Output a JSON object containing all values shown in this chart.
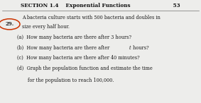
{
  "section_label": "SECTION 1.4",
  "section_title": "Exponential Functions",
  "page_number": "53",
  "bg_color": "#e8e8e8",
  "circle_color": "#cc3300",
  "text_color": "#1a1a1a",
  "header_color": "#111111"
}
